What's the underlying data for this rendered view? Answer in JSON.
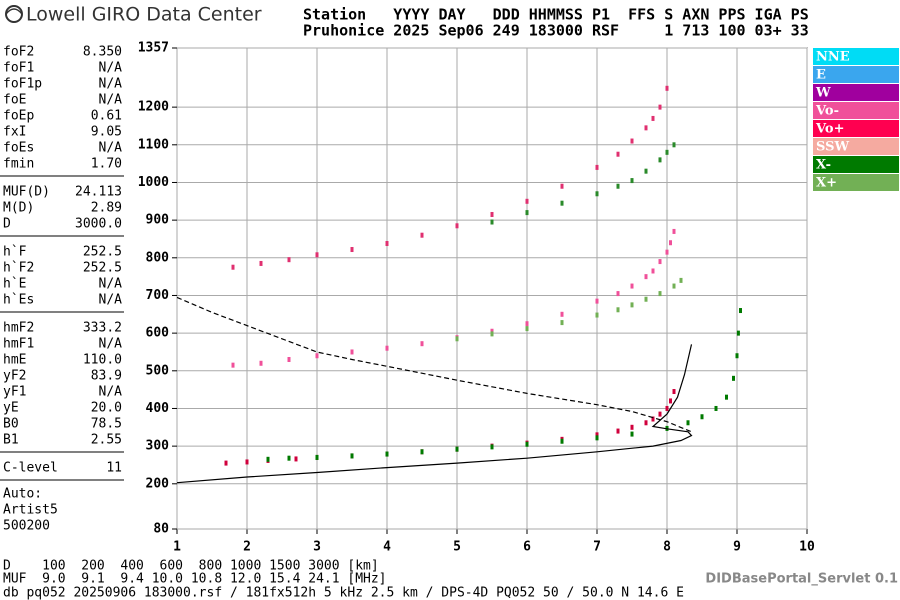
{
  "header": {
    "logo": "Lowell GIRO Data Center",
    "columns": "Station   YYYY DAY   DDD HHMMSS P1  FFS S AXN PPS IGA PS",
    "values": "Pruhonice 2025 Sep06 249 183000 RSF     1 713 100 03+ 33"
  },
  "parameters": [
    [
      [
        "foF2",
        "8.350"
      ],
      [
        "foF1",
        "N/A"
      ],
      [
        "foF1p",
        "N/A"
      ],
      [
        "foE",
        "N/A"
      ],
      [
        "foEp",
        "0.61"
      ],
      [
        "fxI",
        "9.05"
      ],
      [
        "foEs",
        "N/A"
      ],
      [
        "fmin",
        "1.70"
      ]
    ],
    [
      [
        "MUF(D)",
        "24.113"
      ],
      [
        "M(D)",
        "2.89"
      ],
      [
        "D",
        "3000.0"
      ]
    ],
    [
      [
        "h`F",
        "252.5"
      ],
      [
        "h`F2",
        "252.5"
      ],
      [
        "h`E",
        "N/A"
      ],
      [
        "h`Es",
        "N/A"
      ]
    ],
    [
      [
        "hmF2",
        "333.2"
      ],
      [
        "hmF1",
        "N/A"
      ],
      [
        "hmE",
        "110.0"
      ],
      [
        "yF2",
        "83.9"
      ],
      [
        "yF1",
        "N/A"
      ],
      [
        "yE",
        "20.0"
      ],
      [
        "B0",
        "78.5"
      ],
      [
        "B1",
        "2.55"
      ]
    ],
    [
      [
        "C-level",
        "11"
      ]
    ]
  ],
  "autoscaling": [
    "Auto:",
    "Artist5",
    "500200"
  ],
  "chart_data": {
    "type": "scatter",
    "xlim": [
      1,
      10
    ],
    "xticks": [
      1,
      2,
      3,
      4,
      5,
      6,
      7,
      8,
      9,
      10
    ],
    "ylim": [
      80,
      1357
    ],
    "yticks": [
      80,
      200,
      300,
      400,
      500,
      600,
      700,
      800,
      900,
      1000,
      1100,
      1200,
      1357
    ],
    "grid": true,
    "legend": [
      {
        "name": "NNE",
        "color": "#00dcf5"
      },
      {
        "name": "E",
        "color": "#3aa6ee"
      },
      {
        "name": "W",
        "color": "#a0009e"
      },
      {
        "name": "Vo-",
        "color": "#f0509a"
      },
      {
        "name": "Vo+",
        "color": "#ff0050"
      },
      {
        "name": "SSW",
        "color": "#f5aaa0"
      },
      {
        "name": "X-",
        "color": "#007a00"
      },
      {
        "name": "X+",
        "color": "#72b055"
      }
    ],
    "series": [
      {
        "color": "#d0003c",
        "style": "points",
        "x": [
          1.7,
          2.0,
          2.3,
          2.7,
          3.0,
          3.5,
          4.0,
          4.5,
          5.0,
          5.5,
          6.0,
          6.5,
          7.0,
          7.3,
          7.5,
          7.7,
          7.8,
          7.9,
          8.0,
          8.05,
          8.1
        ],
        "values": [
          255,
          258,
          262,
          266,
          270,
          274,
          279,
          285,
          292,
          300,
          308,
          318,
          330,
          340,
          350,
          362,
          372,
          385,
          400,
          420,
          445
        ]
      },
      {
        "color": "#007a00",
        "style": "points",
        "x": [
          2.3,
          2.6,
          3.0,
          3.5,
          4.0,
          4.5,
          5.0,
          5.5,
          6.0,
          6.5,
          7.0,
          7.5,
          8.0,
          8.3,
          8.5,
          8.7,
          8.85,
          8.95,
          9.0,
          9.02,
          9.05
        ],
        "values": [
          265,
          268,
          270,
          274,
          279,
          285,
          292,
          298,
          305,
          313,
          322,
          332,
          347,
          362,
          378,
          400,
          430,
          480,
          540,
          600,
          660
        ]
      },
      {
        "color": "#f0509a",
        "style": "points",
        "x": [
          1.8,
          2.2,
          2.6,
          3.0,
          3.5,
          4.0,
          4.5,
          5.0,
          5.5,
          6.0,
          6.5,
          7.0,
          7.3,
          7.5,
          7.7,
          7.8,
          7.9,
          8.0,
          8.05,
          8.1
        ],
        "values": [
          515,
          520,
          530,
          540,
          550,
          560,
          572,
          588,
          605,
          625,
          650,
          685,
          705,
          725,
          750,
          765,
          790,
          815,
          840,
          870
        ]
      },
      {
        "color": "#72b055",
        "style": "points",
        "x": [
          5.0,
          5.5,
          6.0,
          6.5,
          7.0,
          7.3,
          7.5,
          7.7,
          7.9,
          8.1,
          8.2
        ],
        "values": [
          585,
          598,
          612,
          628,
          648,
          662,
          675,
          690,
          705,
          725,
          740
        ]
      },
      {
        "color": "#e03070",
        "style": "points",
        "x": [
          1.8,
          2.2,
          2.6,
          3.0,
          3.5,
          4.0,
          4.5,
          5.0,
          5.5,
          6.0,
          6.5,
          7.0,
          7.3,
          7.5,
          7.7,
          7.8,
          7.9,
          8.0
        ],
        "values": [
          775,
          785,
          795,
          808,
          822,
          838,
          860,
          885,
          915,
          950,
          990,
          1040,
          1075,
          1110,
          1145,
          1170,
          1200,
          1250
        ]
      },
      {
        "color": "#2a8a2a",
        "style": "points",
        "x": [
          5.5,
          6.0,
          6.5,
          7.0,
          7.3,
          7.5,
          7.7,
          7.9,
          8.0,
          8.1
        ],
        "values": [
          895,
          920,
          945,
          970,
          990,
          1005,
          1030,
          1060,
          1080,
          1100
        ]
      },
      {
        "color": "#000000",
        "style": "line",
        "x": [
          1.0,
          2.0,
          3.0,
          4.0,
          5.0,
          6.0,
          7.0,
          7.8,
          8.2,
          8.35,
          8.3,
          8.0,
          7.8,
          8.0,
          8.15,
          8.25,
          8.35
        ],
        "values": [
          203,
          218,
          230,
          243,
          255,
          268,
          285,
          300,
          315,
          328,
          338,
          346,
          352,
          385,
          430,
          490,
          570
        ]
      },
      {
        "color": "#000000",
        "style": "dashed",
        "x": [
          1.0,
          1.5,
          2.0,
          2.5,
          3.0,
          3.5,
          4.0,
          5.0,
          6.0,
          7.0,
          7.5,
          8.0,
          8.35
        ],
        "values": [
          695,
          655,
          620,
          585,
          550,
          530,
          512,
          475,
          440,
          410,
          392,
          365,
          338
        ]
      }
    ]
  },
  "footer": {
    "d_row": "D    100  200  400  600  800 1000 1500 3000 [km]",
    "muf_row": "MUF  9.0  9.1  9.4 10.0 10.8 12.0 15.4 24.1 [MHz]",
    "servlet": "DIDBasePortal_Servlet 0.1",
    "info": "db pq052 20250906 183000.rsf / 181fx512h 5 kHz 2.5 km / DPS-4D PQ052 50 / 50.0 N 14.6 E"
  }
}
